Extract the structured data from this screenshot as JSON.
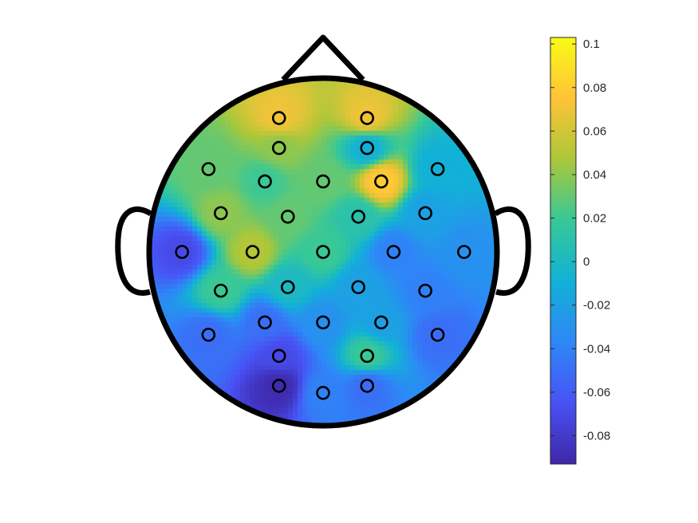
{
  "chart_data": {
    "type": "heatmap",
    "title": "",
    "colormap": "parula",
    "colorbar": {
      "range": [
        -0.093,
        0.103
      ],
      "ticks": [
        0.1,
        0.08,
        0.06,
        0.04,
        0.02,
        0,
        -0.02,
        -0.04,
        -0.06,
        -0.08
      ],
      "tick_labels": [
        "0.1",
        "0.08",
        "0.06",
        "0.04",
        "0.02",
        "0",
        "-0.02",
        "-0.04",
        "-0.06",
        "-0.08"
      ]
    },
    "electrodes": [
      {
        "x": -0.25,
        "y": 0.76,
        "value": 0.07
      },
      {
        "x": 0.25,
        "y": 0.76,
        "value": 0.07
      },
      {
        "x": -0.25,
        "y": 0.59,
        "value": 0.04
      },
      {
        "x": 0.25,
        "y": 0.59,
        "value": -0.01
      },
      {
        "x": -0.65,
        "y": 0.47,
        "value": 0.03
      },
      {
        "x": -0.33,
        "y": 0.4,
        "value": 0.02
      },
      {
        "x": 0.0,
        "y": 0.4,
        "value": 0.03
      },
      {
        "x": 0.33,
        "y": 0.4,
        "value": 0.08
      },
      {
        "x": 0.65,
        "y": 0.47,
        "value": -0.01
      },
      {
        "x": -0.58,
        "y": 0.22,
        "value": 0.04
      },
      {
        "x": -0.2,
        "y": 0.2,
        "value": 0.03
      },
      {
        "x": 0.2,
        "y": 0.2,
        "value": 0.01
      },
      {
        "x": 0.58,
        "y": 0.22,
        "value": -0.02
      },
      {
        "x": -0.8,
        "y": 0.0,
        "value": -0.07
      },
      {
        "x": -0.4,
        "y": 0.0,
        "value": 0.05
      },
      {
        "x": 0.0,
        "y": 0.0,
        "value": 0.02
      },
      {
        "x": 0.4,
        "y": 0.0,
        "value": -0.04
      },
      {
        "x": 0.8,
        "y": 0.0,
        "value": -0.03
      },
      {
        "x": -0.58,
        "y": -0.22,
        "value": 0.02
      },
      {
        "x": -0.2,
        "y": -0.2,
        "value": 0.0
      },
      {
        "x": 0.2,
        "y": -0.2,
        "value": -0.02
      },
      {
        "x": 0.58,
        "y": -0.22,
        "value": -0.04
      },
      {
        "x": -0.65,
        "y": -0.47,
        "value": -0.05
      },
      {
        "x": -0.33,
        "y": -0.4,
        "value": -0.05
      },
      {
        "x": 0.0,
        "y": -0.4,
        "value": -0.03
      },
      {
        "x": 0.33,
        "y": -0.4,
        "value": -0.02
      },
      {
        "x": 0.65,
        "y": -0.47,
        "value": -0.05
      },
      {
        "x": -0.25,
        "y": -0.59,
        "value": -0.07
      },
      {
        "x": 0.25,
        "y": -0.59,
        "value": 0.02
      },
      {
        "x": -0.25,
        "y": -0.76,
        "value": -0.09
      },
      {
        "x": 0.0,
        "y": -0.8,
        "value": -0.04
      },
      {
        "x": 0.25,
        "y": -0.76,
        "value": -0.05
      }
    ]
  }
}
